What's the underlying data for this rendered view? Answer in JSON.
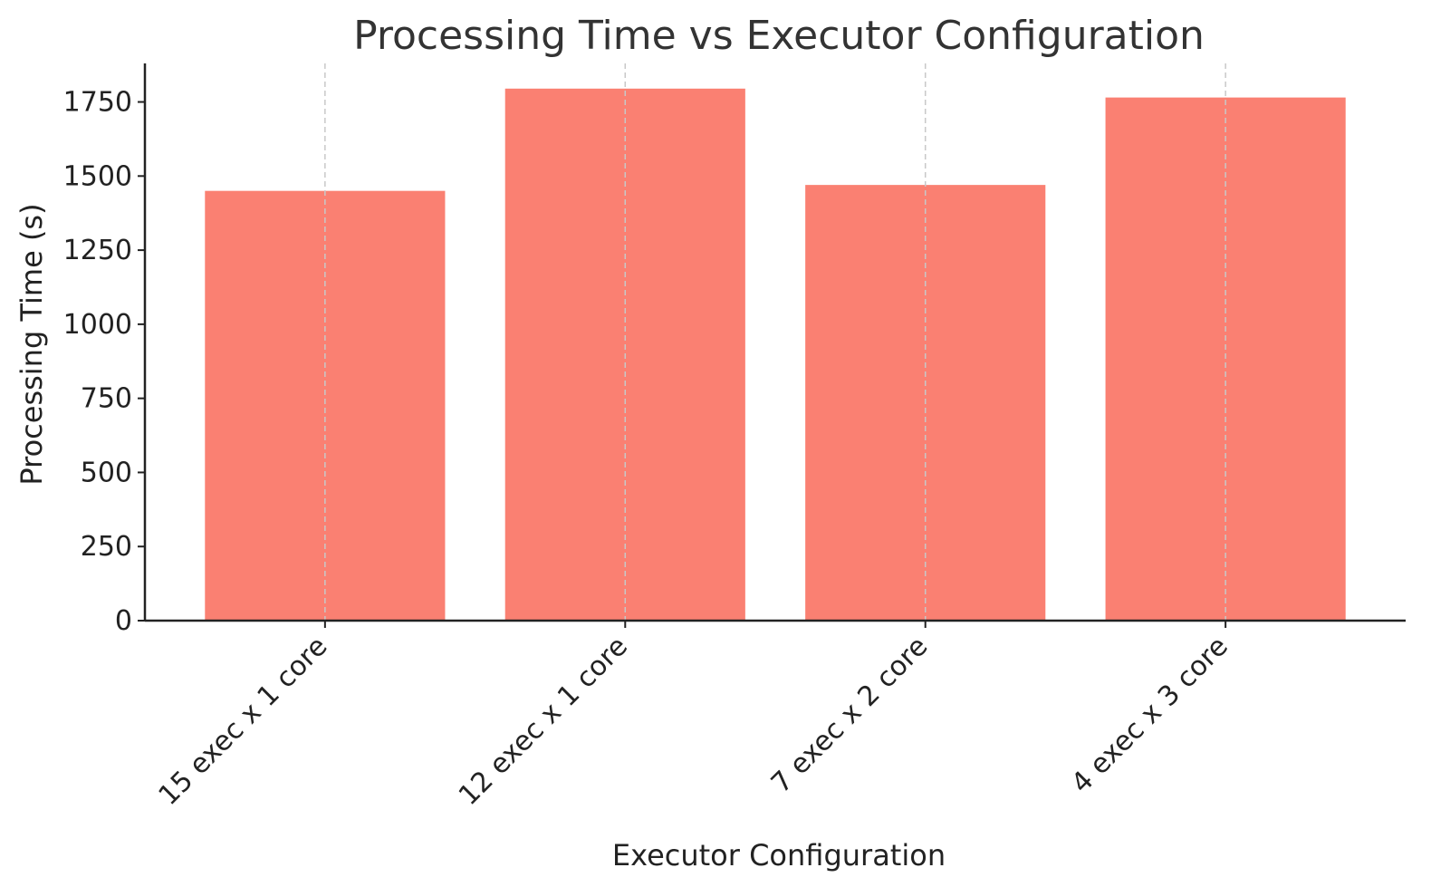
{
  "chart_data": {
    "type": "bar",
    "title": "Processing Time vs Executor Configuration",
    "xlabel": "Executor Configuration",
    "ylabel": "Processing Time (s)",
    "categories": [
      "15 exec x 1 core",
      "12 exec x 1 core",
      "7 exec x 2 core",
      "4 exec x 3 core"
    ],
    "values": [
      1450,
      1795,
      1470,
      1765
    ],
    "ylim": [
      0,
      1880
    ],
    "yticks": [
      0,
      250,
      500,
      750,
      1000,
      1250,
      1500,
      1750
    ],
    "ytick_labels": [
      "0",
      "250",
      "500",
      "750",
      "1000",
      "1250",
      "1500",
      "1750"
    ],
    "bar_color": "#fa8072",
    "grid": "x-axis dashed",
    "legend": "none"
  }
}
